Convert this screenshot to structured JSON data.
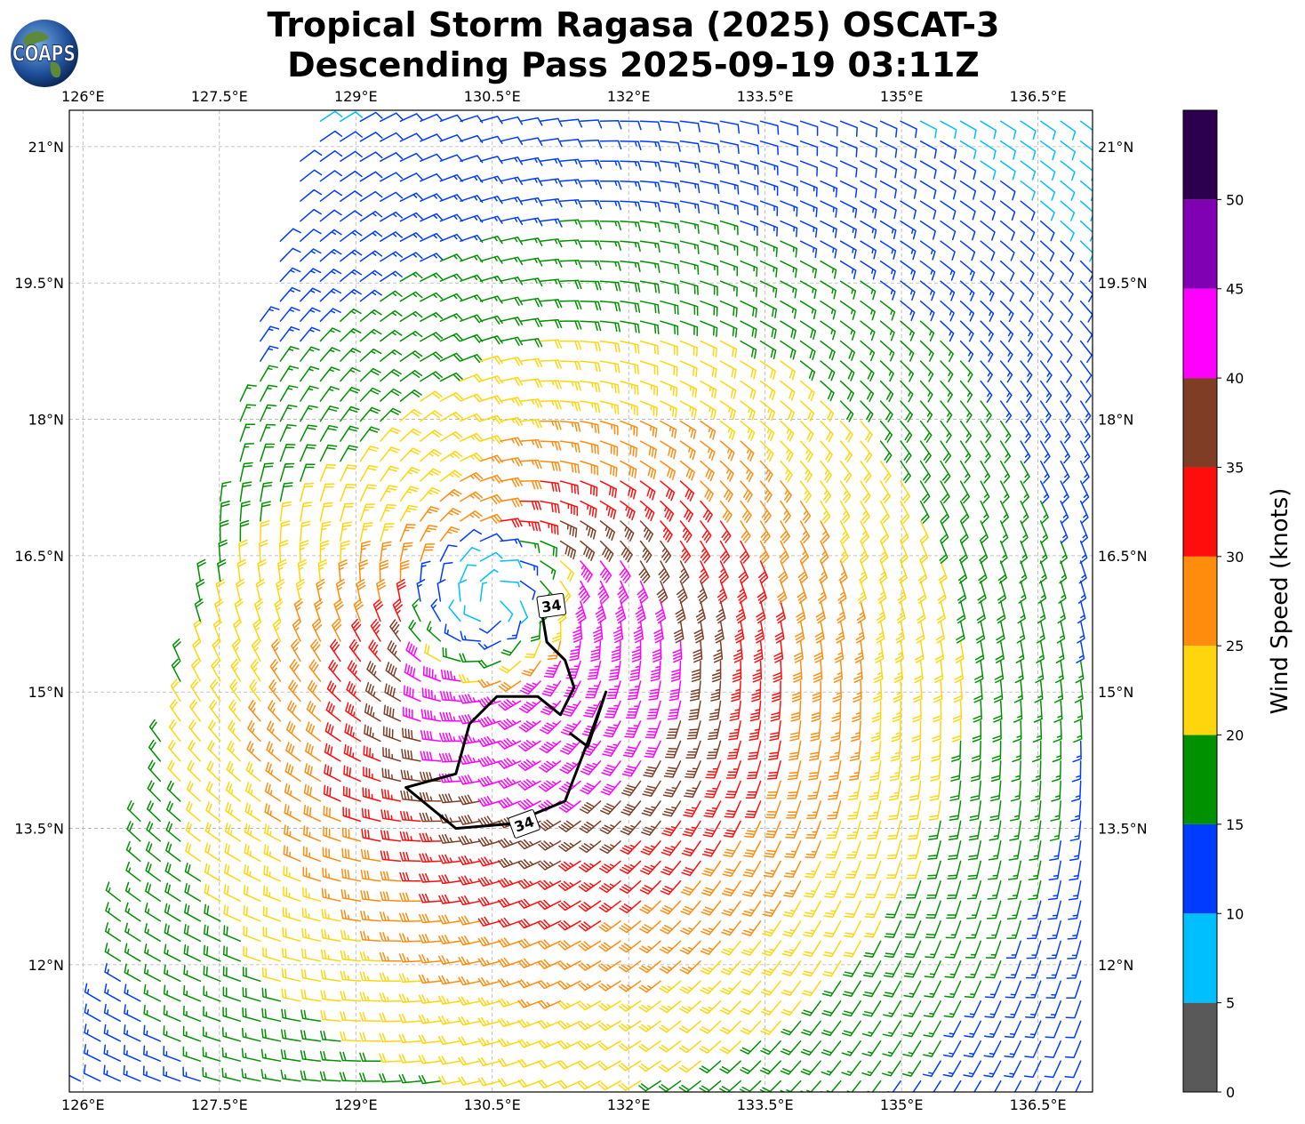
{
  "title": {
    "line1": "Tropical Storm Ragasa (2025) OSCAT-3",
    "line2": "Descending Pass 2025-09-19 03:11Z"
  },
  "logo": {
    "text": "COAPS"
  },
  "chart_data": {
    "type": "wind-barb map",
    "title": "Tropical Storm Ragasa (2025) OSCAT-3 Descending Pass 2025-09-19 03:11Z",
    "lon_range": [
      125.85,
      137.1
    ],
    "lat_range": [
      10.6,
      21.4
    ],
    "lon_ticks": [
      126,
      127.5,
      129,
      130.5,
      132,
      133.5,
      135,
      136.5
    ],
    "lon_tick_labels": [
      "126°E",
      "127.5°E",
      "129°E",
      "130.5°E",
      "132°E",
      "133.5°E",
      "135°E",
      "136.5°E"
    ],
    "lat_ticks": [
      21,
      19.5,
      18,
      16.5,
      15,
      13.5,
      12
    ],
    "lat_tick_labels": [
      "21°N",
      "19.5°N",
      "18°N",
      "16.5°N",
      "15°N",
      "13.5°N",
      "12°N"
    ],
    "grid": true,
    "storm_center": {
      "lon": 130.5,
      "lat": 15.95
    },
    "contour_label": "34",
    "contour_34kt": [
      [
        131.05,
        15.85
      ],
      [
        131.1,
        15.55
      ],
      [
        131.3,
        15.35
      ],
      [
        131.4,
        15.05
      ],
      [
        131.25,
        14.75
      ],
      [
        131.0,
        14.95
      ],
      [
        130.55,
        14.95
      ],
      [
        130.25,
        14.65
      ],
      [
        130.1,
        14.1
      ],
      [
        129.55,
        13.95
      ],
      [
        130.1,
        13.5
      ],
      [
        130.7,
        13.55
      ],
      [
        131.3,
        13.8
      ],
      [
        131.55,
        14.45
      ],
      [
        131.75,
        15.0
      ],
      [
        131.55,
        14.4
      ],
      [
        131.35,
        14.55
      ]
    ],
    "colorbar": {
      "label": "Wind Speed (knots)",
      "ticks": [
        0,
        5,
        10,
        15,
        20,
        25,
        30,
        35,
        40,
        45,
        50
      ],
      "bins": [
        {
          "min": 0,
          "max": 5,
          "color": "#595959"
        },
        {
          "min": 5,
          "max": 10,
          "color": "#00bfff"
        },
        {
          "min": 10,
          "max": 15,
          "color": "#003cff"
        },
        {
          "min": 15,
          "max": 20,
          "color": "#009100"
        },
        {
          "min": 20,
          "max": 25,
          "color": "#ffd60d"
        },
        {
          "min": 25,
          "max": 30,
          "color": "#ff8c0d"
        },
        {
          "min": 30,
          "max": 35,
          "color": "#ff0d0d"
        },
        {
          "min": 35,
          "max": 40,
          "color": "#7f3d26"
        },
        {
          "min": 40,
          "max": 45,
          "color": "#ff00ff"
        },
        {
          "min": 45,
          "max": 50,
          "color": "#8000b3"
        },
        {
          "min": 50,
          "max": 55,
          "color": "#2d004f"
        }
      ]
    }
  }
}
